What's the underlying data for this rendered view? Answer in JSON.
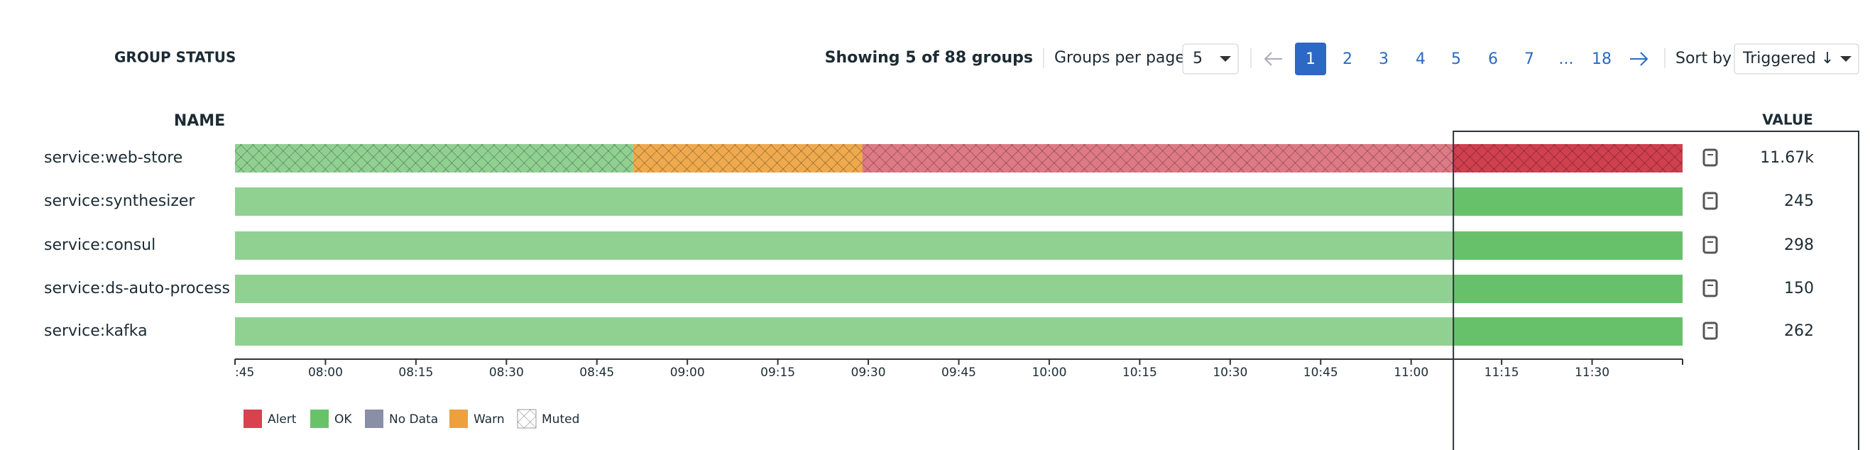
{
  "header": {
    "title": "GROUP STATUS",
    "showing": "Showing 5 of 88 groups",
    "per_page_label": "Groups per page:",
    "per_page_value": "5",
    "pages": [
      "1",
      "2",
      "3",
      "4",
      "5",
      "6",
      "7",
      "...",
      "18"
    ],
    "current_page": "1",
    "sort_label": "Sort by",
    "sort_value": "Triggered ↓"
  },
  "table": {
    "name_header": "NAME",
    "value_header": "VALUE",
    "rows": [
      {
        "name": "service:web-store",
        "value": "11.67k",
        "muted": true,
        "segments": [
          {
            "status": "ok",
            "start": "07:45",
            "end": "08:51"
          },
          {
            "status": "warn",
            "start": "08:51",
            "end": "09:29"
          },
          {
            "status": "alert",
            "start": "09:29",
            "end": "11:45"
          }
        ]
      },
      {
        "name": "service:synthesizer",
        "value": "245",
        "muted": false,
        "segments": [
          {
            "status": "ok",
            "start": "07:45",
            "end": "11:45"
          }
        ]
      },
      {
        "name": "service:consul",
        "value": "298",
        "muted": false,
        "segments": [
          {
            "status": "ok",
            "start": "07:45",
            "end": "11:45"
          }
        ]
      },
      {
        "name": "service:ds-auto-process",
        "value": "150",
        "muted": false,
        "segments": [
          {
            "status": "ok",
            "start": "07:45",
            "end": "11:45"
          }
        ]
      },
      {
        "name": "service:kafka",
        "value": "262",
        "muted": false,
        "segments": [
          {
            "status": "ok",
            "start": "07:45",
            "end": "11:45"
          }
        ]
      }
    ]
  },
  "timeline": {
    "xlim": [
      "07:45",
      "11:45"
    ],
    "selected": [
      "11:07",
      "11:45"
    ],
    "ticks": [
      {
        "value": "07:45",
        "label": ":45"
      },
      "08:00",
      "08:15",
      "08:30",
      "08:45",
      "09:00",
      "09:15",
      "09:30",
      "09:45",
      "10:00",
      "10:15",
      "10:30",
      "10:45",
      "11:00",
      "11:15",
      "11:30"
    ]
  },
  "legend": [
    {
      "label": "Alert",
      "color": "#d9414f"
    },
    {
      "label": "OK",
      "color": "#68c368"
    },
    {
      "label": "No Data",
      "color": "#8a8fa8"
    },
    {
      "label": "Warn",
      "color": "#eea03c"
    },
    {
      "label": "Muted",
      "pattern": true
    }
  ],
  "status_colors": {
    "ok": [
      "#90d192",
      "#67c16b"
    ],
    "warn": [
      "#efaa4f",
      "#e69530"
    ],
    "alert": [
      "#de7a84",
      "#d0404f"
    ]
  }
}
